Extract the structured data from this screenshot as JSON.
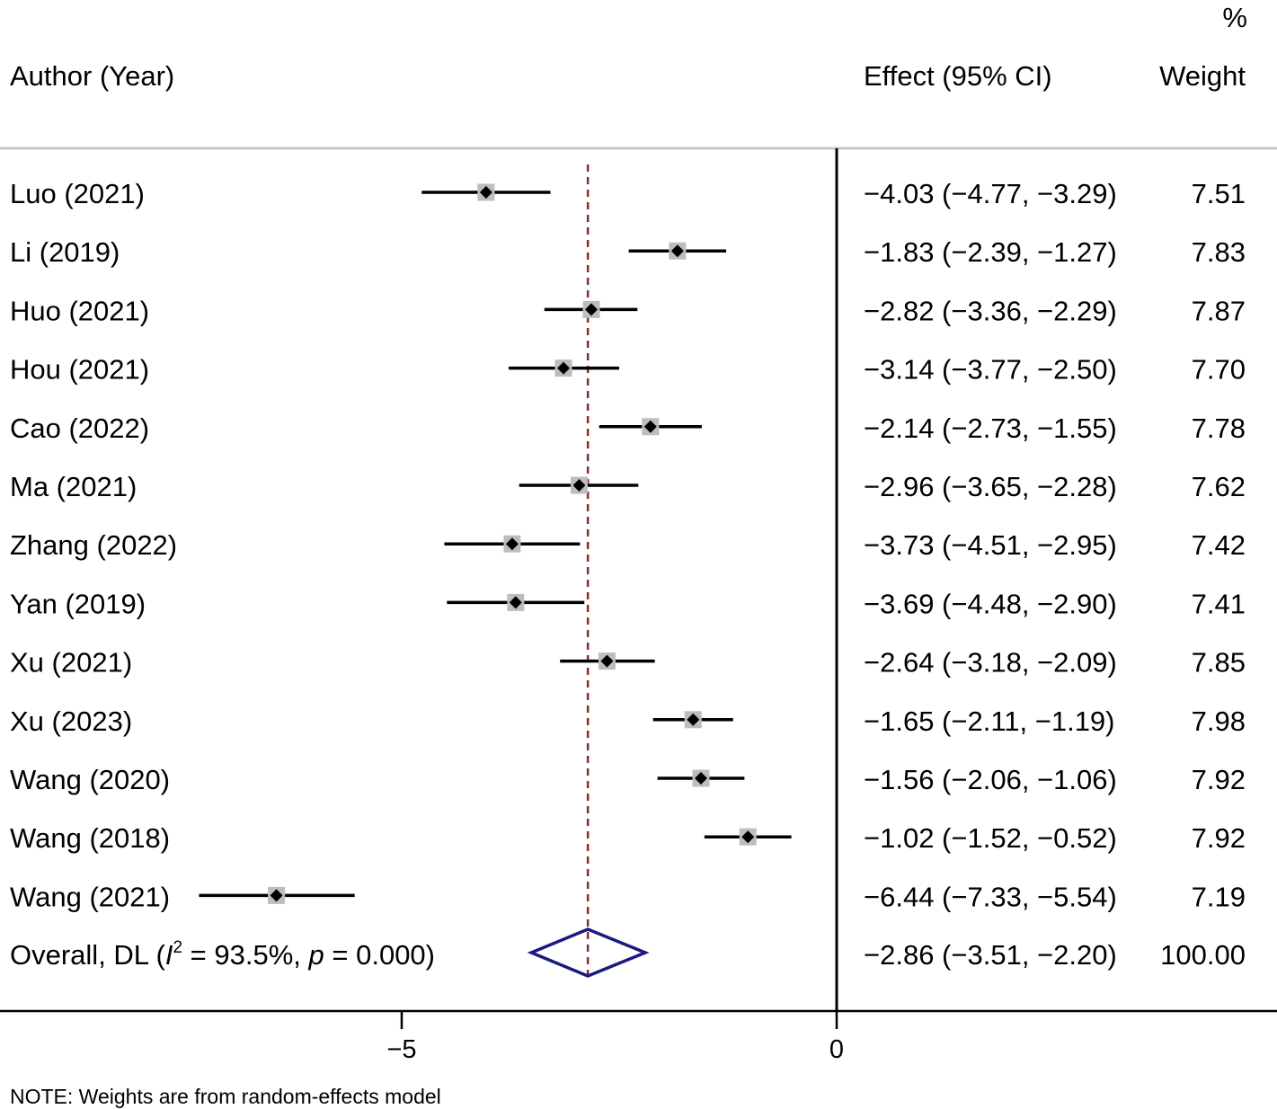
{
  "headers": {
    "author": "Author (Year)",
    "effect": "Effect (95% CI)",
    "weight_pct": "%",
    "weight": "Weight"
  },
  "chart_data": {
    "type": "forest",
    "studies": [
      {
        "label": "Luo (2021)",
        "effect": -4.03,
        "lower": -4.77,
        "upper": -3.29,
        "effect_text": "−4.03 (−4.77, −3.29)",
        "weight": "7.51"
      },
      {
        "label": "Li (2019)",
        "effect": -1.83,
        "lower": -2.39,
        "upper": -1.27,
        "effect_text": "−1.83 (−2.39, −1.27)",
        "weight": "7.83"
      },
      {
        "label": "Huo (2021)",
        "effect": -2.82,
        "lower": -3.36,
        "upper": -2.29,
        "effect_text": "−2.82 (−3.36, −2.29)",
        "weight": "7.87"
      },
      {
        "label": "Hou (2021)",
        "effect": -3.14,
        "lower": -3.77,
        "upper": -2.5,
        "effect_text": "−3.14 (−3.77, −2.50)",
        "weight": "7.70"
      },
      {
        "label": "Cao (2022)",
        "effect": -2.14,
        "lower": -2.73,
        "upper": -1.55,
        "effect_text": "−2.14 (−2.73, −1.55)",
        "weight": "7.78"
      },
      {
        "label": "Ma (2021)",
        "effect": -2.96,
        "lower": -3.65,
        "upper": -2.28,
        "effect_text": "−2.96 (−3.65, −2.28)",
        "weight": "7.62"
      },
      {
        "label": "Zhang (2022)",
        "effect": -3.73,
        "lower": -4.51,
        "upper": -2.95,
        "effect_text": "−3.73 (−4.51, −2.95)",
        "weight": "7.42"
      },
      {
        "label": "Yan (2019)",
        "effect": -3.69,
        "lower": -4.48,
        "upper": -2.9,
        "effect_text": "−3.69 (−4.48, −2.90)",
        "weight": "7.41"
      },
      {
        "label": "Xu (2021)",
        "effect": -2.64,
        "lower": -3.18,
        "upper": -2.09,
        "effect_text": "−2.64 (−3.18, −2.09)",
        "weight": "7.85"
      },
      {
        "label": "Xu (2023)",
        "effect": -1.65,
        "lower": -2.11,
        "upper": -1.19,
        "effect_text": "−1.65 (−2.11, −1.19)",
        "weight": "7.98"
      },
      {
        "label": "Wang (2020)",
        "effect": -1.56,
        "lower": -2.06,
        "upper": -1.06,
        "effect_text": "−1.56 (−2.06, −1.06)",
        "weight": "7.92"
      },
      {
        "label": "Wang (2018)",
        "effect": -1.02,
        "lower": -1.52,
        "upper": -0.52,
        "effect_text": "−1.02 (−1.52, −0.52)",
        "weight": "7.92"
      },
      {
        "label": "Wang (2021)",
        "effect": -6.44,
        "lower": -7.33,
        "upper": -5.54,
        "effect_text": "−6.44 (−7.33, −5.54)",
        "weight": "7.19"
      }
    ],
    "overall": {
      "label_prefix": "Overall, DL (",
      "i_symbol": "I",
      "sup": "2",
      "label_mid": " = 93.5%, ",
      "p_symbol": "p",
      "label_suffix": " = 0.000)",
      "effect": -2.86,
      "lower": -3.51,
      "upper": -2.2,
      "effect_text": "−2.86 (−3.51, −2.20)",
      "weight": "100.00"
    },
    "x_ticks": [
      -5,
      0
    ],
    "x_tick_labels": [
      "−5",
      "0"
    ],
    "null_line": 0,
    "note": "NOTE: Weights are from random-effects model",
    "colors": {
      "ci_line": "#000000",
      "weight_box": "#bdbdbd",
      "point": "#000000",
      "diamond": "#1a1a80",
      "overall_line": "#8b2a2a",
      "separator": "#c8c8c8"
    }
  }
}
